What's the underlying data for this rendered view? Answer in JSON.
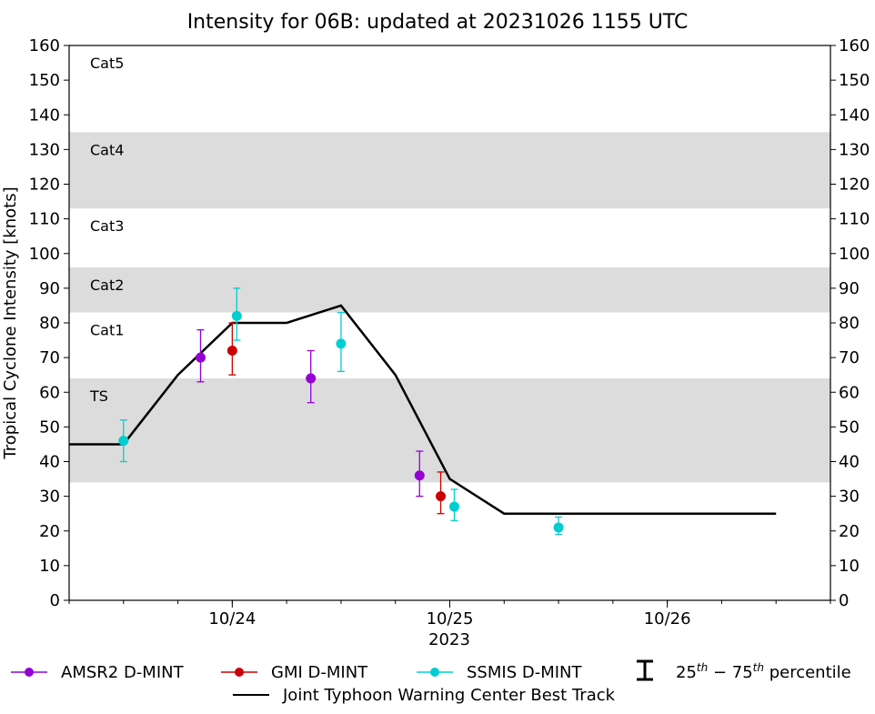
{
  "chart_data": {
    "type": "scatter",
    "title": "Intensity for 06B: updated at 20231026 1155 UTC",
    "ylabel": "Tropical Cyclone Intensity [knots]",
    "xlabel": "2023",
    "ylim": [
      0,
      160
    ],
    "yticks": [
      0,
      10,
      20,
      30,
      40,
      50,
      60,
      70,
      80,
      90,
      100,
      110,
      120,
      130,
      140,
      150,
      160
    ],
    "xlim": [
      "2023-10-23 06:00",
      "2023-10-26 18:00"
    ],
    "xticks": [
      {
        "label": "10/24",
        "time": "2023-10-24 00:00"
      },
      {
        "label": "10/25",
        "time": "2023-10-25 00:00"
      },
      {
        "label": "10/26",
        "time": "2023-10-26 00:00"
      }
    ],
    "grid": false,
    "category_bands": [
      {
        "label": "TS",
        "y0": 34,
        "y1": 64,
        "shaded": true
      },
      {
        "label": "Cat1",
        "y0": 64,
        "y1": 83,
        "shaded": false
      },
      {
        "label": "Cat2",
        "y0": 83,
        "y1": 96,
        "shaded": true
      },
      {
        "label": "Cat3",
        "y0": 96,
        "y1": 113,
        "shaded": false
      },
      {
        "label": "Cat4",
        "y0": 113,
        "y1": 135,
        "shaded": true
      },
      {
        "label": "Cat5",
        "y0": 135,
        "y1": 160,
        "shaded": false
      }
    ],
    "series": [
      {
        "name": "AMSR2 D-MINT",
        "color": "#9400d3",
        "points": [
          {
            "x": "2023-10-23 20:30",
            "y": 70,
            "low": 63,
            "high": 78
          },
          {
            "x": "2023-10-24 08:40",
            "y": 64,
            "low": 57,
            "high": 72
          },
          {
            "x": "2023-10-24 20:40",
            "y": 36,
            "low": 30,
            "high": 43
          }
        ]
      },
      {
        "name": "GMI D-MINT",
        "color": "#cc0000",
        "points": [
          {
            "x": "2023-10-24 00:00",
            "y": 72,
            "low": 65,
            "high": 80
          },
          {
            "x": "2023-10-24 23:00",
            "y": 30,
            "low": 25,
            "high": 37
          }
        ]
      },
      {
        "name": "SSMIS D-MINT",
        "color": "#00ced1",
        "points": [
          {
            "x": "2023-10-23 12:00",
            "y": 46,
            "low": 40,
            "high": 52
          },
          {
            "x": "2023-10-24 00:30",
            "y": 82,
            "low": 75,
            "high": 90
          },
          {
            "x": "2023-10-24 12:00",
            "y": 74,
            "low": 66,
            "high": 83
          },
          {
            "x": "2023-10-25 00:30",
            "y": 27,
            "low": 23,
            "high": 32
          },
          {
            "x": "2023-10-25 12:00",
            "y": 21,
            "low": 19,
            "high": 24
          }
        ]
      }
    ],
    "best_track": {
      "name": "Joint Typhoon Warning Center Best Track",
      "color": "#000000",
      "points": [
        {
          "x": "2023-10-23 06:00",
          "y": 45
        },
        {
          "x": "2023-10-23 12:00",
          "y": 45
        },
        {
          "x": "2023-10-23 18:00",
          "y": 65
        },
        {
          "x": "2023-10-24 00:00",
          "y": 80
        },
        {
          "x": "2023-10-24 06:00",
          "y": 80
        },
        {
          "x": "2023-10-24 12:00",
          "y": 85
        },
        {
          "x": "2023-10-24 18:00",
          "y": 65
        },
        {
          "x": "2023-10-25 00:00",
          "y": 35
        },
        {
          "x": "2023-10-25 06:00",
          "y": 25
        },
        {
          "x": "2023-10-26 12:00",
          "y": 25
        }
      ]
    },
    "legend": {
      "placement": "bottom",
      "percentile_label": "25th – 75th percentile",
      "percentile_base": "25",
      "percentile_sup": "th",
      "percentile_mid": " − 75",
      "percentile_tail": " percentile"
    }
  }
}
